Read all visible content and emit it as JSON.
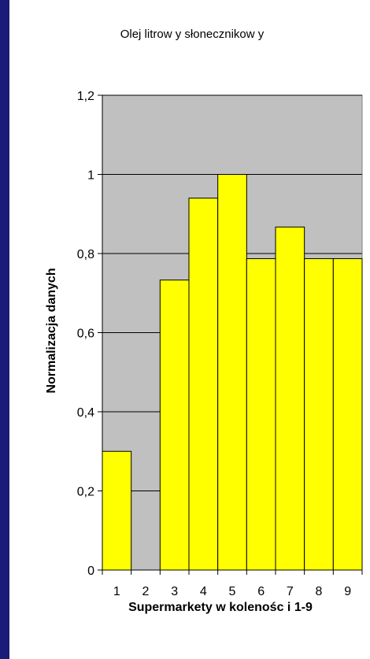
{
  "chart_data": {
    "type": "bar",
    "title": "Olej litrow y słonecznikow y",
    "xlabel": "Supermarkety w kolenośc i 1-9",
    "ylabel": "Normalizacja danych",
    "categories": [
      "1",
      "2",
      "3",
      "4",
      "5",
      "6",
      "7",
      "8",
      "9"
    ],
    "values": [
      0.3,
      0,
      0.733,
      0.94,
      1.0,
      0.787,
      0.867,
      0.787,
      0.787
    ],
    "ylim": [
      0,
      1.2
    ],
    "yticks": [
      "0",
      "0,2",
      "0,4",
      "0,6",
      "0,8",
      "1",
      "1,2"
    ],
    "grid": true,
    "legend": "none",
    "colors": {
      "bar_fill": "#ffff00",
      "plot_background": "#c0c0c0",
      "frame_background": "#1a1a78",
      "panel_background": "#ffffff"
    }
  }
}
